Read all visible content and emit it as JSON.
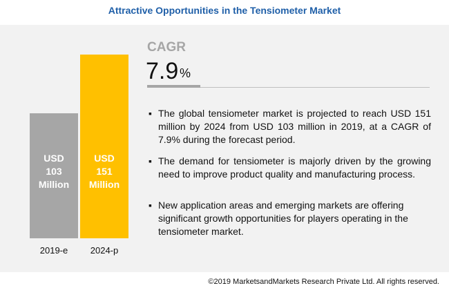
{
  "title": "Attractive Opportunities in the Tensiometer Market",
  "chart_data": {
    "type": "bar",
    "categories": [
      "2019-e",
      "2024-p"
    ],
    "values": [
      103,
      151
    ],
    "value_labels": [
      "USD 103 Million",
      "USD 151 Million"
    ],
    "colors": [
      "#a6a6a6",
      "#ffc000"
    ]
  },
  "cagr": {
    "label": "CAGR",
    "value": 7.9,
    "unit": "%"
  },
  "bullets": [
    "The global tensiometer market is projected to reach USD 151 million by 2024 from USD 103 million in 2019, at a CAGR of 7.9% during the forecast period.",
    "The demand for tensiometer is majorly driven by the growing need to improve product quality and manufacturing process.",
    "New application areas and emerging markets are offering significant growth opportunities for players operating in the tensiometer market."
  ],
  "footer": "©2019 MarketsandMarkets Research Private Ltd. All rights reserved."
}
